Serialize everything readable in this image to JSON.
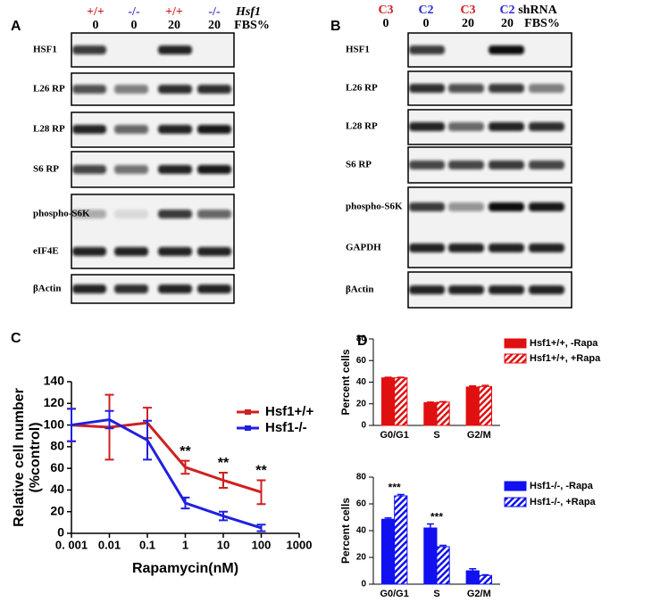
{
  "panels": [
    {
      "letter": "A",
      "top_title": "Hsf1",
      "bottom_title": "FBS%",
      "lanes": [
        {
          "top": "+/+",
          "color": "#d01c1c",
          "bottom": "0"
        },
        {
          "top": "-/-",
          "color": "#2a2ad0",
          "bottom": "0"
        },
        {
          "top": "+/+",
          "color": "#d01c1c",
          "bottom": "20"
        },
        {
          "top": "-/-",
          "color": "#2a2ad0",
          "bottom": "20"
        }
      ],
      "rows": [
        "HSF1",
        "L26 RP",
        "L28 RP",
        "S6 RP",
        "phospho-S6K",
        "eIF4E",
        "βActin"
      ]
    },
    {
      "letter": "B",
      "top_title": "shRNA",
      "bottom_title": "FBS%",
      "lanes": [
        {
          "top": "C3",
          "color": "#d01c1c",
          "bottom": "0"
        },
        {
          "top": "C2",
          "color": "#2a2ad0",
          "bottom": "0"
        },
        {
          "top": "C3",
          "color": "#d01c1c",
          "bottom": "20"
        },
        {
          "top": "C2",
          "color": "#2a2ad0",
          "bottom": "20"
        }
      ],
      "rows": [
        "HSF1",
        "L26 RP",
        "L28 RP",
        "S6 RP",
        "phospho-S6K",
        "GAPDH",
        "βActin"
      ]
    }
  ],
  "chart_data": [
    {
      "type": "line",
      "panel": "C",
      "x_scale": "log",
      "ylabel": [
        "Relative cell number",
        "(%control)"
      ],
      "xlabel": "Rapamycin(nM)",
      "x": [
        0.001,
        0.01,
        0.1,
        1,
        10,
        100
      ],
      "series": [
        {
          "name": "Hsf1+/+",
          "color": "#d02020",
          "values": [
            100,
            98,
            102,
            61,
            49,
            38
          ],
          "errors": [
            15,
            30,
            14,
            6,
            7,
            11
          ]
        },
        {
          "name": "Hsf1-/-",
          "color": "#2020e0",
          "values": [
            100,
            105,
            86,
            28,
            16,
            5
          ],
          "errors": [
            15,
            8,
            18,
            5,
            4,
            3
          ]
        }
      ],
      "annotations": [
        {
          "text": "**",
          "x": 1
        },
        {
          "text": "**",
          "x": 10
        },
        {
          "text": "**",
          "x": 100
        }
      ],
      "xlim": [
        0.001,
        1000
      ],
      "xticks": [
        {
          "value": 0.001,
          "label": "0. 001"
        },
        0.01,
        0.1,
        1,
        10,
        100,
        1000
      ],
      "ylim": [
        0,
        140
      ],
      "yticks": [
        0,
        20,
        40,
        60,
        80,
        100,
        120,
        140
      ]
    },
    {
      "type": "bar",
      "panel": "D",
      "ylabel": "Percent cells",
      "categories": [
        "G0/G1",
        "S",
        "G2/M"
      ],
      "series": [
        {
          "name": "Hsf1+/+, -Rapa",
          "color": "#e01010",
          "hatch": false,
          "values": [
            44,
            21,
            35.5
          ],
          "errors": [
            0.5,
            0.5,
            1
          ]
        },
        {
          "name": "Hsf1+/+, +Rapa",
          "color": "#e01010",
          "hatch": true,
          "values": [
            44,
            21.5,
            36
          ],
          "errors": [
            0.5,
            0.5,
            1
          ]
        }
      ],
      "ylim": [
        0,
        80
      ],
      "yticks": [
        0,
        20,
        40,
        60,
        80
      ]
    },
    {
      "type": "bar",
      "ylabel": "Percent cells",
      "categories": [
        "G0/G1",
        "S",
        "G2/M"
      ],
      "series": [
        {
          "name": "Hsf1-/-, -Rapa",
          "color": "#1010f0",
          "hatch": false,
          "values": [
            48.5,
            42,
            10
          ],
          "errors": [
            1,
            3,
            1.5
          ]
        },
        {
          "name": "Hsf1-/-, +Rapa",
          "color": "#1010f0",
          "hatch": true,
          "values": [
            66,
            28,
            6.5
          ],
          "errors": [
            1,
            1,
            0.5
          ]
        }
      ],
      "annotations": [
        {
          "text": "***",
          "at": 0
        },
        {
          "text": "***",
          "at": 1
        }
      ],
      "ylim": [
        0,
        80
      ],
      "yticks": [
        0,
        20,
        40,
        60,
        80
      ]
    }
  ]
}
